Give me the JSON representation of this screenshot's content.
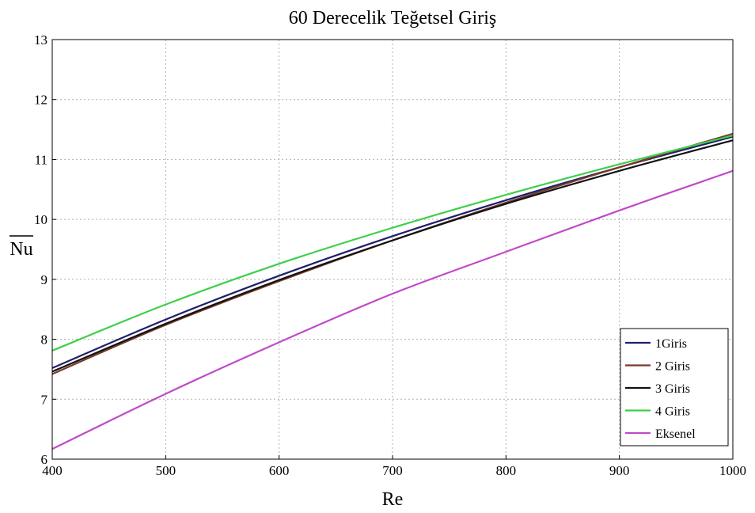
{
  "chart_data": {
    "type": "line",
    "title": "60 Derecelik Teğetsel Giriş",
    "xlabel": "Re",
    "ylabel": "Nu",
    "xlim": [
      400,
      1000
    ],
    "ylim": [
      6,
      13
    ],
    "xticks": [
      400,
      500,
      600,
      700,
      800,
      900,
      1000
    ],
    "yticks": [
      6,
      7,
      8,
      9,
      10,
      11,
      12,
      13
    ],
    "grid": true,
    "legend_position": "bottom-right",
    "x": [
      400,
      500,
      600,
      700,
      800,
      900,
      1000
    ],
    "series": [
      {
        "name": "1Giris",
        "color": "#1f1f6e",
        "values": [
          7.52,
          8.33,
          9.06,
          9.72,
          10.32,
          10.87,
          11.38
        ]
      },
      {
        "name": "2 Giris",
        "color": "#7a3a2a",
        "values": [
          7.42,
          8.24,
          8.97,
          9.65,
          10.28,
          10.87,
          11.43
        ]
      },
      {
        "name": "3 Giris",
        "color": "#111111",
        "values": [
          7.46,
          8.26,
          8.99,
          9.65,
          10.26,
          10.81,
          11.32
        ]
      },
      {
        "name": "4 Giris",
        "color": "#3ecf4a",
        "values": [
          7.81,
          8.58,
          9.26,
          9.86,
          10.41,
          10.92,
          11.4
        ]
      },
      {
        "name": "Eksenel",
        "color": "#c04ac8",
        "values": [
          6.17,
          7.09,
          7.95,
          8.76,
          9.46,
          10.15,
          10.81
        ]
      }
    ]
  }
}
